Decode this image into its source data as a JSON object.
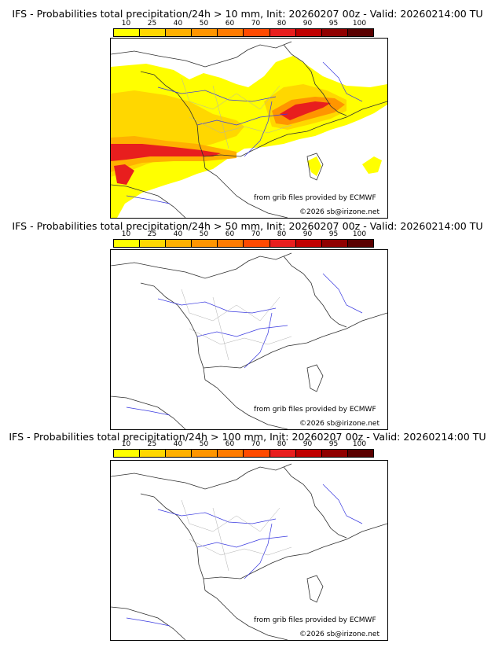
{
  "colorbar": {
    "ticks": [
      "10",
      "25",
      "40",
      "50",
      "60",
      "70",
      "80",
      "90",
      "95",
      "100"
    ],
    "colors": [
      "#ffff00",
      "#ffd700",
      "#ffb000",
      "#ff9500",
      "#ff7b00",
      "#ff4a00",
      "#e81e1e",
      "#c00000",
      "#900000",
      "#5a0000"
    ]
  },
  "panels": [
    {
      "title": "IFS - Probabilities total precipitation/24h > 10 mm, Init: 20260207 00z - Valid: 20260214:00 TU",
      "threshold_mm": 10
    },
    {
      "title": "IFS - Probabilities total precipitation/24h > 50 mm, Init: 20260207 00z - Valid: 20260214:00 TU",
      "threshold_mm": 50
    },
    {
      "title": "IFS - Probabilities total precipitation/24h > 100 mm, Init: 20260207 00z - Valid: 20260214:00 TU",
      "threshold_mm": 100
    }
  ],
  "credits": {
    "source": "from grib files provided by ECMWF",
    "copyright": "©2026 sb@irizone.net"
  },
  "colors": {
    "border": "#303030",
    "river": "#3a3ae0",
    "region": "#b0b0b0"
  }
}
